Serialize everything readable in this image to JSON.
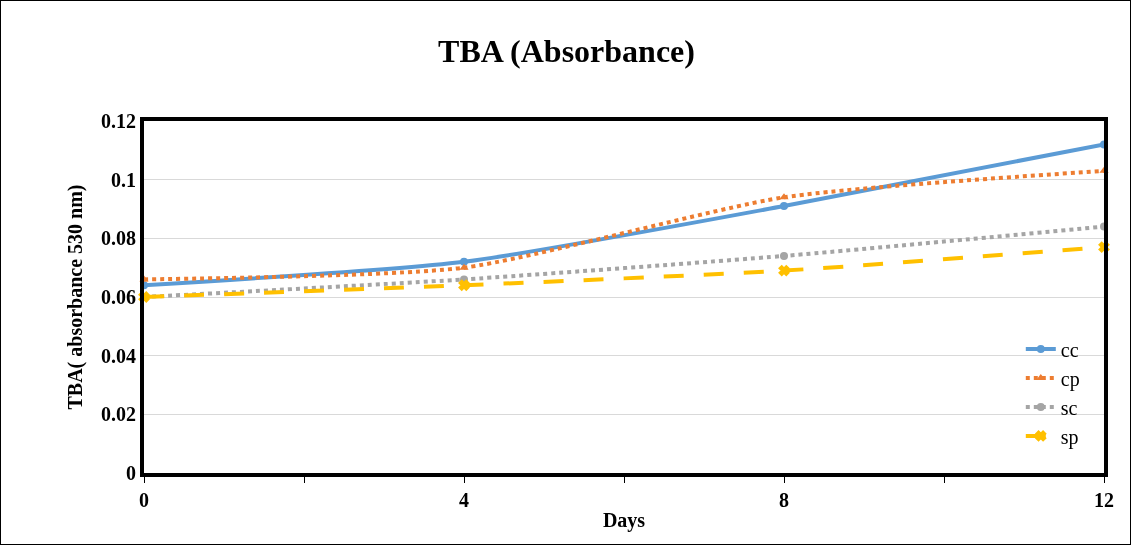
{
  "chart_data": {
    "type": "line",
    "title": "TBA (Absorbance)",
    "xlabel": "Days",
    "ylabel": "TBA( absorbance 530 nm)",
    "x": [
      0,
      4,
      8,
      12
    ],
    "series": [
      {
        "name": "cc",
        "color": "#5b9bd5",
        "values": [
          0.064,
          0.072,
          0.091,
          0.112
        ],
        "marker": "circle",
        "line_style": "solid"
      },
      {
        "name": "cp",
        "color": "#ed7d31",
        "values": [
          0.066,
          0.07,
          0.094,
          0.103
        ],
        "marker": "triangle",
        "line_style": "dotted"
      },
      {
        "name": "sc",
        "color": "#a5a5a5",
        "values": [
          0.06,
          0.066,
          0.074,
          0.084
        ],
        "marker": "circle",
        "line_style": "dotted"
      },
      {
        "name": "sp",
        "color": "#ffc000",
        "values": [
          0.06,
          0.064,
          0.069,
          0.077
        ],
        "marker": "cross",
        "line_style": "dashed"
      }
    ],
    "xlim": [
      0,
      12
    ],
    "xticks": [
      0,
      {
        "value": 2,
        "label": null
      },
      4,
      {
        "value": 6,
        "label": null
      },
      8,
      {
        "value": 10,
        "label": null
      },
      12
    ],
    "ylim": [
      0,
      0.12
    ],
    "yticks": [
      0,
      0.02,
      0.04,
      0.06,
      0.08,
      0.1,
      0.12
    ],
    "grid": "y",
    "legend": "bottom right"
  }
}
